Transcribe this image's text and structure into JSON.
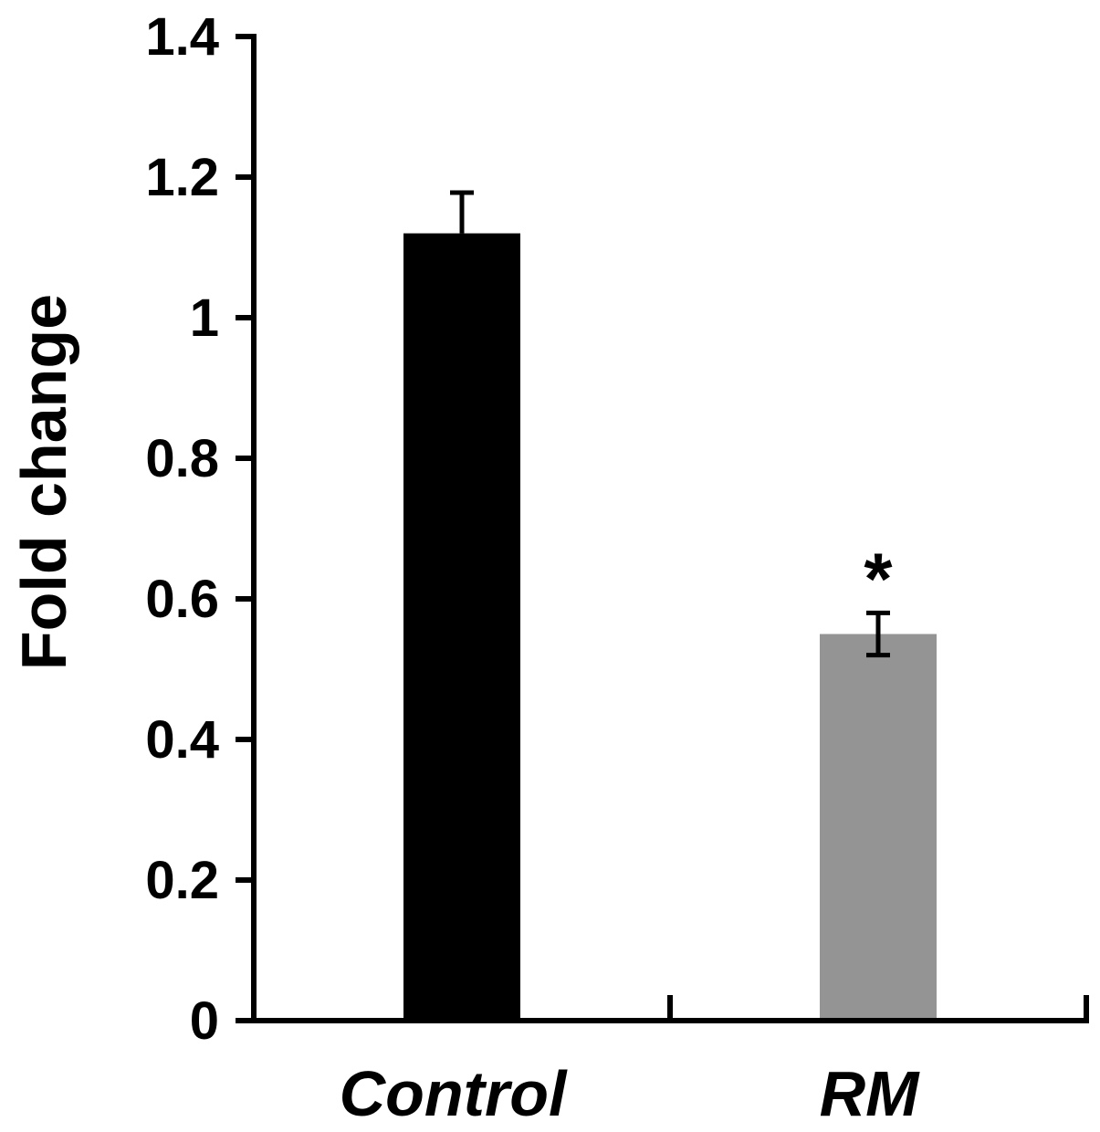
{
  "chart_data": {
    "type": "bar",
    "categories": [
      "Control",
      "RM"
    ],
    "series": [
      {
        "values": [
          1.12,
          0.55
        ],
        "errors": [
          0.058,
          0.03
        ],
        "colors": [
          "#000000",
          "#949494"
        ]
      }
    ],
    "ylabel": "Fold change",
    "xlabel": "",
    "ylim": [
      0,
      1.4
    ],
    "yticks": [
      0,
      0.2,
      0.4,
      0.6,
      0.8,
      1,
      1.2,
      1.4
    ],
    "ytick_labels": [
      "0",
      "0.2",
      "0.4",
      "0.6",
      "0.8",
      "1",
      "1.2",
      "1.4"
    ],
    "annotations": [
      {
        "category": "RM",
        "text": "*"
      }
    ],
    "grid": false,
    "legend": "none"
  }
}
